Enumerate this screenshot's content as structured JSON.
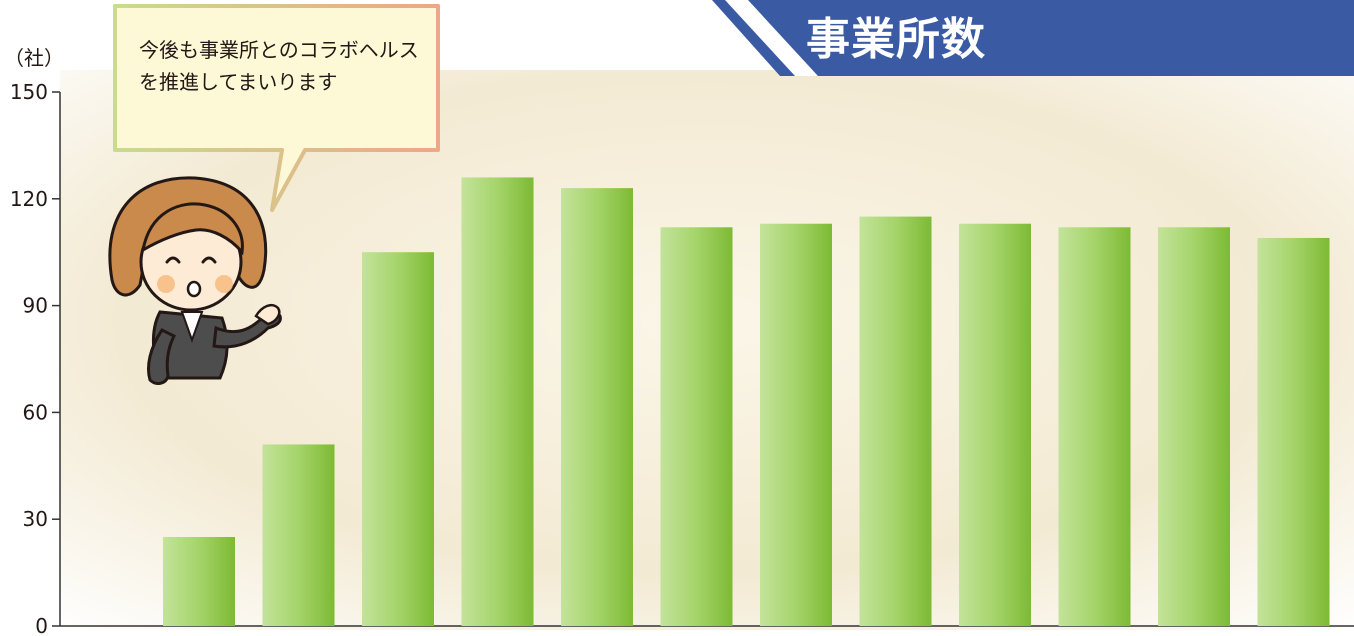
{
  "title": "事業所数",
  "speech_bubble": "今後も事業所とのコラボヘルスを推進してまいります",
  "colors": {
    "title_bg": "#3a5ba3",
    "bar": "#8cc63f",
    "bar_light": "#c3e39a",
    "bubble_fill": "#fdf8d6",
    "bubble_border": "#e9b98c",
    "background": "#f3ead3"
  },
  "icon": "woman-in-suit-pointing-illustration",
  "chart_data": {
    "type": "bar",
    "title": "事業所数",
    "ylabel": "（社）",
    "xlabel": "",
    "categories": [
      "",
      "",
      "",
      "",
      "",
      "",
      "",
      "",
      "",
      "",
      "",
      ""
    ],
    "values": [
      25,
      51,
      105,
      126,
      123,
      112,
      113,
      115,
      113,
      112,
      112,
      109
    ],
    "ylim": [
      0,
      150
    ],
    "yticks": [
      "0",
      "30",
      "60",
      "90",
      "120",
      "150"
    ],
    "grid": false,
    "legend": "none"
  }
}
